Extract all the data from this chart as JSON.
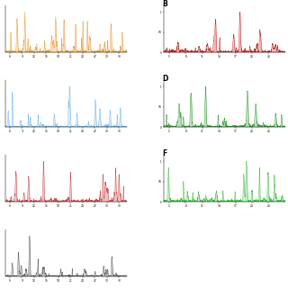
{
  "panels_left": [
    {
      "label": "",
      "color": "#E8A040",
      "row": 0
    },
    {
      "label": "",
      "color": "#7ABBE8",
      "row": 1
    },
    {
      "label": "",
      "color": "#C85050",
      "row": 2
    },
    {
      "label": "",
      "color": "#606060",
      "row": 3
    }
  ],
  "panels_right": [
    {
      "label": "B",
      "color": "#C03030",
      "row": 0
    },
    {
      "label": "D",
      "color": "#38A038",
      "row": 1
    },
    {
      "label": "F",
      "color": "#50C050",
      "row": 2
    }
  ],
  "background_color": "#ffffff",
  "fig_width": 3.2,
  "fig_height": 3.2
}
